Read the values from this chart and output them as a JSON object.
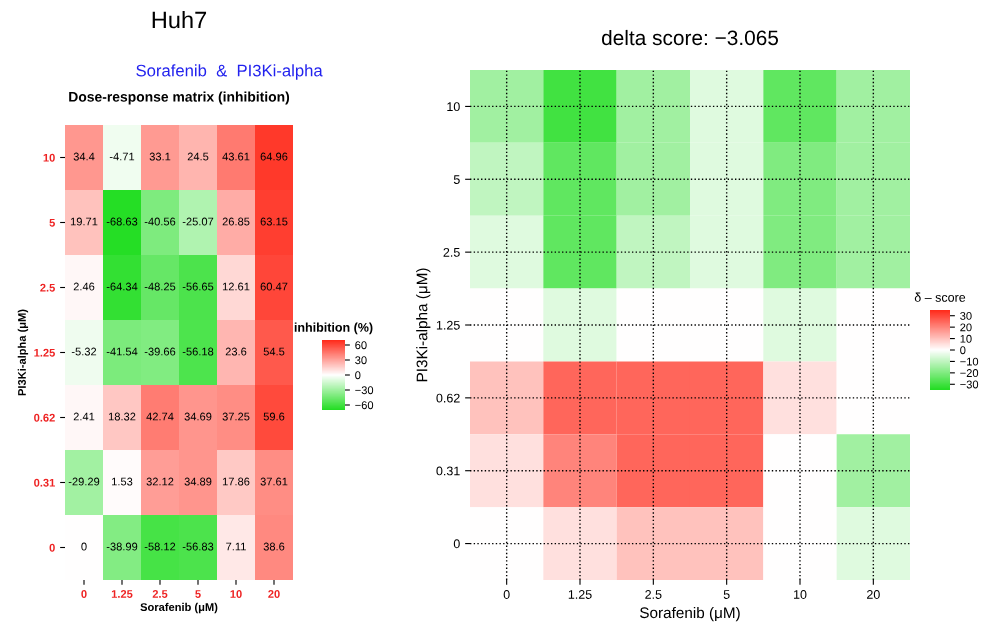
{
  "chart_data": [
    {
      "type": "heatmap",
      "title": "Huh7",
      "subtitle": "Sorafenib  &  PI3Ki-alpha",
      "annotations": [
        "Dose-response matrix (inhibition)"
      ],
      "categories": [
        "0",
        "1.25",
        "2.5",
        "5",
        "10",
        "20"
      ],
      "y_categories": [
        "10",
        "5",
        "2.5",
        "1.25",
        "0.62",
        "0.31",
        "0"
      ],
      "cells": [
        [
          34.4,
          -4.71,
          33.1,
          24.5,
          43.61,
          64.96
        ],
        [
          19.71,
          -68.63,
          -40.56,
          -25.07,
          26.85,
          63.15
        ],
        [
          2.46,
          -64.34,
          -48.25,
          -56.65,
          12.61,
          60.47
        ],
        [
          -5.32,
          -41.54,
          -39.66,
          -56.18,
          23.6,
          54.5
        ],
        [
          2.41,
          18.32,
          42.74,
          34.69,
          37.25,
          59.6
        ],
        [
          -29.29,
          1.53,
          32.12,
          34.89,
          17.86,
          37.61
        ],
        [
          0,
          -38.99,
          -58.12,
          -56.83,
          7.11,
          38.6
        ]
      ],
      "data_labels": true,
      "xlabel": "Sorafenib (μM)",
      "ylabel": "PI3Ki-alpha (μM)",
      "clabel": "inhibition (%)",
      "clim": [
        -70,
        70
      ],
      "cticks": [
        -60,
        -30,
        0,
        30,
        60
      ]
    },
    {
      "type": "heatmap",
      "title": "delta score: −3.065",
      "categories": [
        "0",
        "1.25",
        "2.5",
        "5",
        "10",
        "20"
      ],
      "y_categories": [
        "10",
        "5",
        "2.5",
        "1.25",
        "0.62",
        "0.31",
        "0"
      ],
      "cells": [
        [
          -15,
          -30,
          -15,
          -5,
          -25,
          -15
        ],
        [
          -10,
          -25,
          -15,
          -5,
          -20,
          -15
        ],
        [
          -5,
          -25,
          -10,
          -5,
          -20,
          -15
        ],
        [
          0,
          -5,
          0,
          0,
          -5,
          0
        ],
        [
          10,
          25,
          25,
          25,
          5,
          0
        ],
        [
          5,
          20,
          25,
          25,
          0,
          -15
        ],
        [
          0,
          5,
          10,
          10,
          0,
          -5
        ]
      ],
      "xlabel": "Sorafenib (μM)",
      "ylabel": "PI3Ki-alpha (μM)",
      "clabel": "δ – score",
      "clim": [
        -35,
        35
      ],
      "cticks": [
        -30,
        -20,
        -10,
        0,
        10,
        20,
        30
      ],
      "grid": true
    }
  ]
}
